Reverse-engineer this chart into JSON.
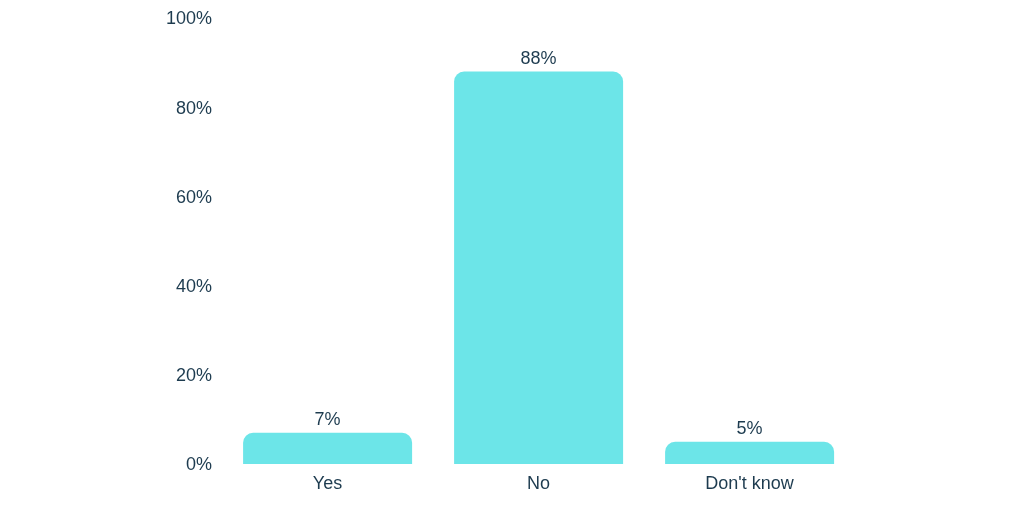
{
  "chart_data": {
    "type": "bar",
    "categories": [
      "Yes",
      "No",
      "Don't know"
    ],
    "values": [
      7,
      88,
      5
    ],
    "value_labels": [
      "7%",
      "88%",
      "5%"
    ],
    "color": "#6ce5e8",
    "ylim": [
      0,
      100
    ],
    "yticks": [
      {
        "value": 0,
        "label": "0%"
      },
      {
        "value": 20,
        "label": "20%"
      },
      {
        "value": 40,
        "label": "40%"
      },
      {
        "value": 60,
        "label": "60%"
      },
      {
        "value": 80,
        "label": "80%"
      },
      {
        "value": 100,
        "label": "100%"
      }
    ],
    "grid": false,
    "legend": false
  }
}
